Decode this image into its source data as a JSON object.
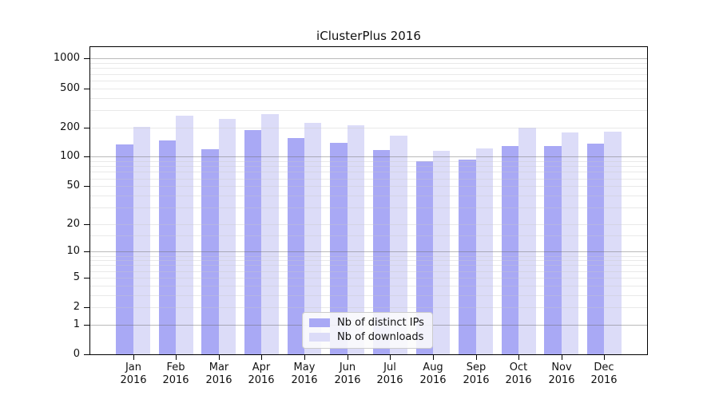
{
  "chart_data": {
    "type": "bar",
    "title": "iClusterPlus 2016",
    "categories": [
      "Jan",
      "Feb",
      "Mar",
      "Apr",
      "May",
      "Jun",
      "Jul",
      "Aug",
      "Sep",
      "Oct",
      "Nov",
      "Dec"
    ],
    "category_year": "2016",
    "series": [
      {
        "name": "Nb of distinct IPs",
        "color": "#a9a9f5",
        "values": [
          135,
          146,
          120,
          188,
          155,
          140,
          118,
          90,
          93,
          130,
          128,
          136
        ]
      },
      {
        "name": "Nb of downloads",
        "color": "#dcdcf8",
        "values": [
          201,
          263,
          243,
          274,
          222,
          209,
          165,
          115,
          122,
          198,
          178,
          181
        ]
      }
    ],
    "xlabel": "",
    "ylabel": "",
    "yscale": "log1p",
    "ylim": [
      0,
      1310
    ],
    "yticks": [
      0,
      1,
      2,
      5,
      10,
      20,
      50,
      100,
      200,
      500,
      1000
    ],
    "grid_major": [
      1,
      10,
      100,
      1000
    ],
    "grid_minor": [
      2,
      3,
      4,
      5,
      6,
      7,
      8,
      9,
      15,
      20,
      30,
      40,
      50,
      60,
      70,
      80,
      90,
      200,
      300,
      400,
      500,
      600,
      700,
      800,
      900
    ],
    "grid": "on",
    "legend_position": "bottom-center",
    "colors": {
      "bar_ips": "#a9a9f5",
      "bar_downloads": "#dcdcf8",
      "grid_minor": "#e6e6e6",
      "grid_major": "#9e9e9e",
      "axis": "#000000",
      "text": "#111111",
      "legend_border": "#cccccc"
    }
  }
}
